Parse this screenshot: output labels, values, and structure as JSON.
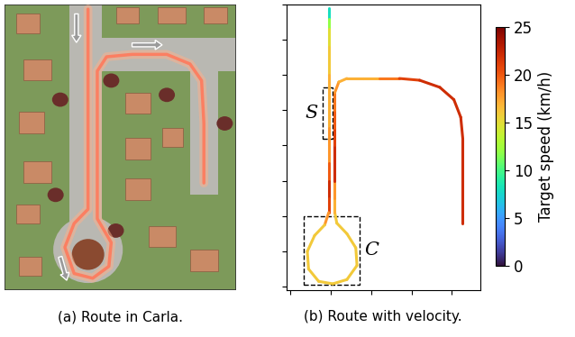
{
  "image": {
    "caption": "(a) Route in Carla."
  },
  "chart_data": {
    "type": "line",
    "caption": "(b) Route with velocity.",
    "x": [
      0.95,
      0.95,
      0.95,
      0.95,
      0.95,
      0.95,
      0.95,
      0.95,
      0.95,
      0.95,
      0.95,
      0.95,
      0.85,
      0.6,
      0.42,
      0.45,
      0.7,
      1.05,
      1.4,
      1.65,
      1.62,
      1.4,
      1.15,
      1.1,
      1.1,
      1.1,
      1.1,
      1.1,
      1.1,
      1.1,
      1.1,
      1.2,
      1.4,
      1.8,
      2.2,
      2.7,
      3.2,
      3.7,
      4.05,
      4.22,
      4.27,
      4.27,
      4.27
    ],
    "y": [
      7.9,
      7.6,
      7.3,
      6.8,
      6.0,
      5.0,
      4.5,
      4.0,
      3.5,
      3.0,
      2.5,
      2.1,
      1.75,
      1.45,
      1.0,
      0.5,
      0.15,
      0.08,
      0.2,
      0.6,
      1.1,
      1.5,
      1.8,
      2.1,
      2.5,
      3.0,
      3.5,
      4.0,
      4.5,
      5.0,
      5.5,
      5.8,
      5.9,
      5.9,
      5.9,
      5.9,
      5.85,
      5.65,
      5.3,
      4.8,
      4.2,
      3.0,
      1.8
    ],
    "speed": [
      8,
      12,
      15,
      16,
      17,
      17,
      18,
      18,
      20,
      22,
      21,
      18,
      16,
      16,
      16,
      16,
      16,
      16,
      16,
      16,
      16,
      16,
      16,
      17,
      18,
      22,
      22,
      21,
      20,
      19,
      18,
      17,
      17,
      17,
      19,
      21,
      22,
      22,
      22,
      22,
      22,
      22,
      22
    ],
    "xlim": [
      -0.1,
      4.7
    ],
    "ylim": [
      -0.1,
      8.0
    ],
    "xticks": [
      0,
      1,
      2,
      3,
      4
    ],
    "yticks": [
      0,
      1,
      2,
      3,
      4,
      5,
      6,
      7,
      8
    ],
    "tick_labels": false,
    "colorbar": {
      "label": "Target speed (km/h)",
      "range": [
        0,
        25
      ],
      "ticks": [
        0,
        5,
        10,
        15,
        20,
        25
      ]
    },
    "regions": [
      {
        "label": "S",
        "x": [
          0.8,
          1.04
        ],
        "y": [
          4.2,
          5.64
        ]
      },
      {
        "label": "C",
        "x": [
          0.33,
          1.71
        ],
        "y": [
          0.05,
          2.0
        ]
      }
    ]
  }
}
